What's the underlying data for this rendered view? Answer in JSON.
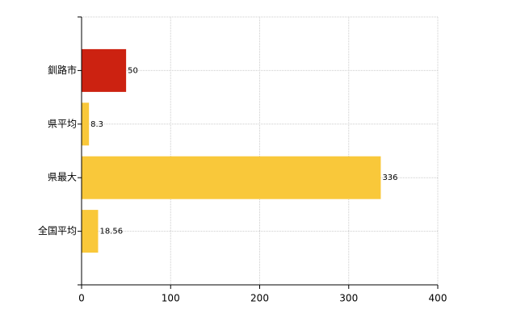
{
  "chart_data": {
    "type": "hbar",
    "categories": [
      "釧路市",
      "県平均",
      "県最大",
      "全国平均"
    ],
    "values": [
      50,
      8.3,
      336,
      18.56
    ],
    "colors": [
      "#cc2211",
      "#f9c83a",
      "#f9c83a",
      "#f9c83a"
    ],
    "xlim": [
      0,
      400
    ],
    "xticks": [
      0,
      100,
      200,
      300,
      400
    ],
    "grid": true
  }
}
